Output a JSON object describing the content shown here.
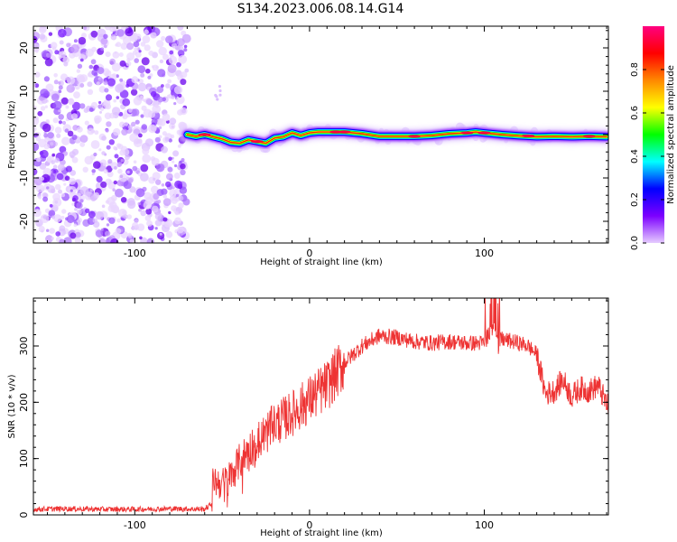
{
  "chart_data": [
    {
      "type": "heatmap",
      "title": "S134.2023.006.08.14.G14",
      "xlabel": "Height of straight line (km)",
      "ylabel": "Frequency (Hz)",
      "xlim": [
        -158,
        171
      ],
      "ylim": [
        -25,
        25
      ],
      "x_ticks": [
        -100,
        0,
        100
      ],
      "y_ticks": [
        -20,
        -10,
        0,
        10,
        20
      ],
      "noise_region": {
        "x": [
          -158,
          -70
        ],
        "y": [
          -25,
          25
        ]
      },
      "ridge": {
        "x": [
          -70,
          -65,
          -60,
          -55,
          -50,
          -45,
          -40,
          -35,
          -30,
          -25,
          -20,
          -15,
          -10,
          -5,
          0,
          5,
          10,
          20,
          30,
          40,
          50,
          60,
          70,
          80,
          90,
          95,
          100,
          110,
          120,
          130,
          140,
          150,
          160,
          170
        ],
        "y": [
          0.0,
          -0.4,
          0.0,
          -0.5,
          -1.0,
          -1.8,
          -2.0,
          -1.2,
          -1.6,
          -2.0,
          -0.8,
          -0.5,
          0.4,
          -0.2,
          0.4,
          0.6,
          0.6,
          0.6,
          0.2,
          -0.4,
          -0.4,
          -0.4,
          -0.2,
          0.2,
          0.4,
          0.6,
          0.4,
          0.0,
          -0.3,
          -0.5,
          -0.4,
          -0.5,
          -0.4,
          -0.5
        ]
      },
      "colorbar": {
        "label": "Normalized spectral amplitude",
        "range": [
          0.0,
          1.0
        ],
        "ticks": [
          "0.0",
          "0.2",
          "0.4",
          "0.6",
          "0.8"
        ],
        "tick_values": [
          0.0,
          0.2,
          0.4,
          0.6,
          0.8
        ],
        "colors": [
          "#e6ccff",
          "#7c00ff",
          "#0000ff",
          "#00ffff",
          "#00ff00",
          "#ffff00",
          "#ff8800",
          "#ff0000",
          "#ff0080"
        ]
      }
    },
    {
      "type": "line",
      "xlabel": "Height of straight line (km)",
      "ylabel": "SNR (10 * v/v)",
      "xlim": [
        -158,
        171
      ],
      "ylim": [
        0,
        385
      ],
      "x_ticks": [
        -100,
        0,
        100
      ],
      "y_ticks": [
        0,
        100,
        200,
        300
      ],
      "color": "#ee3333",
      "series": [
        {
          "x": [
            -158,
            -140,
            -120,
            -100,
            -80,
            -60,
            -56,
            -55,
            -54,
            -50,
            -45,
            -40,
            -35,
            -30,
            -25,
            -20,
            -10,
            0,
            10,
            20,
            30,
            40,
            50,
            60,
            70,
            80,
            90,
            100,
            104,
            106,
            108,
            110,
            120,
            125,
            130,
            135,
            140,
            145,
            150,
            155,
            160,
            165,
            171
          ],
          "y": [
            10,
            11,
            10,
            10,
            11,
            10,
            20,
            70,
            60,
            55,
            70,
            95,
            115,
            130,
            145,
            160,
            180,
            205,
            230,
            270,
            300,
            318,
            315,
            308,
            305,
            308,
            305,
            305,
            330,
            340,
            300,
            312,
            305,
            300,
            285,
            215,
            220,
            240,
            210,
            225,
            220,
            230,
            190
          ]
        }
      ]
    }
  ]
}
